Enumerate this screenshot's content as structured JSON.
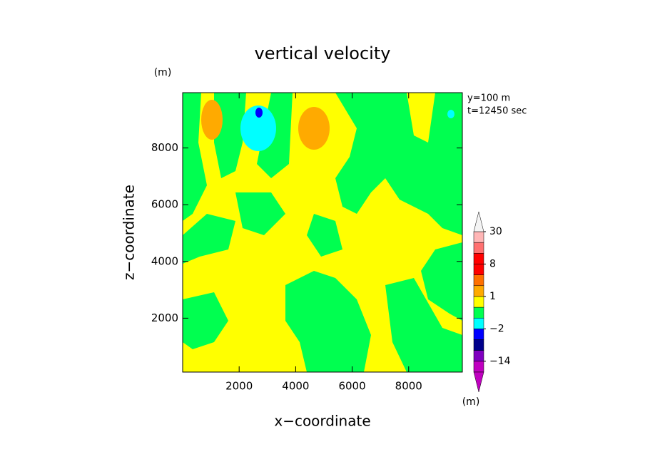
{
  "chart_data": {
    "type": "contour",
    "title": "vertical velocity",
    "x_label": "x−coordinate",
    "y_label": "z−coordinate",
    "y_unit": "(m)",
    "annotations": [
      "y=100 m",
      "t=12450 sec"
    ],
    "xlim": [
      0,
      9900
    ],
    "ylim": [
      100,
      9950
    ],
    "xticks": [
      2000,
      4000,
      6000,
      8000
    ],
    "yticks": [
      2000,
      4000,
      6000,
      8000
    ],
    "colorbar": {
      "unit": "(m)",
      "boundaries": [
        -30,
        -14,
        -10,
        -6,
        -2,
        -1,
        0,
        1,
        2,
        4,
        8,
        12,
        20,
        30
      ],
      "colors": [
        "#c000c0",
        "#8000c0",
        "#00008c",
        "#0000ff",
        "#00ffff",
        "#00ff50",
        "#ffff00",
        "#ffaa00",
        "#ff7000",
        "#ff0000",
        "#ff0000",
        "#ff7070",
        "#ffb6b6"
      ],
      "under_color": "#c000c0",
      "over_color": "#f4f4f4",
      "ticks": [
        30,
        8,
        1,
        {
          "value": -2,
          "label": "−2"
        },
        {
          "value": -14,
          "label": "−14"
        }
      ]
    }
  }
}
